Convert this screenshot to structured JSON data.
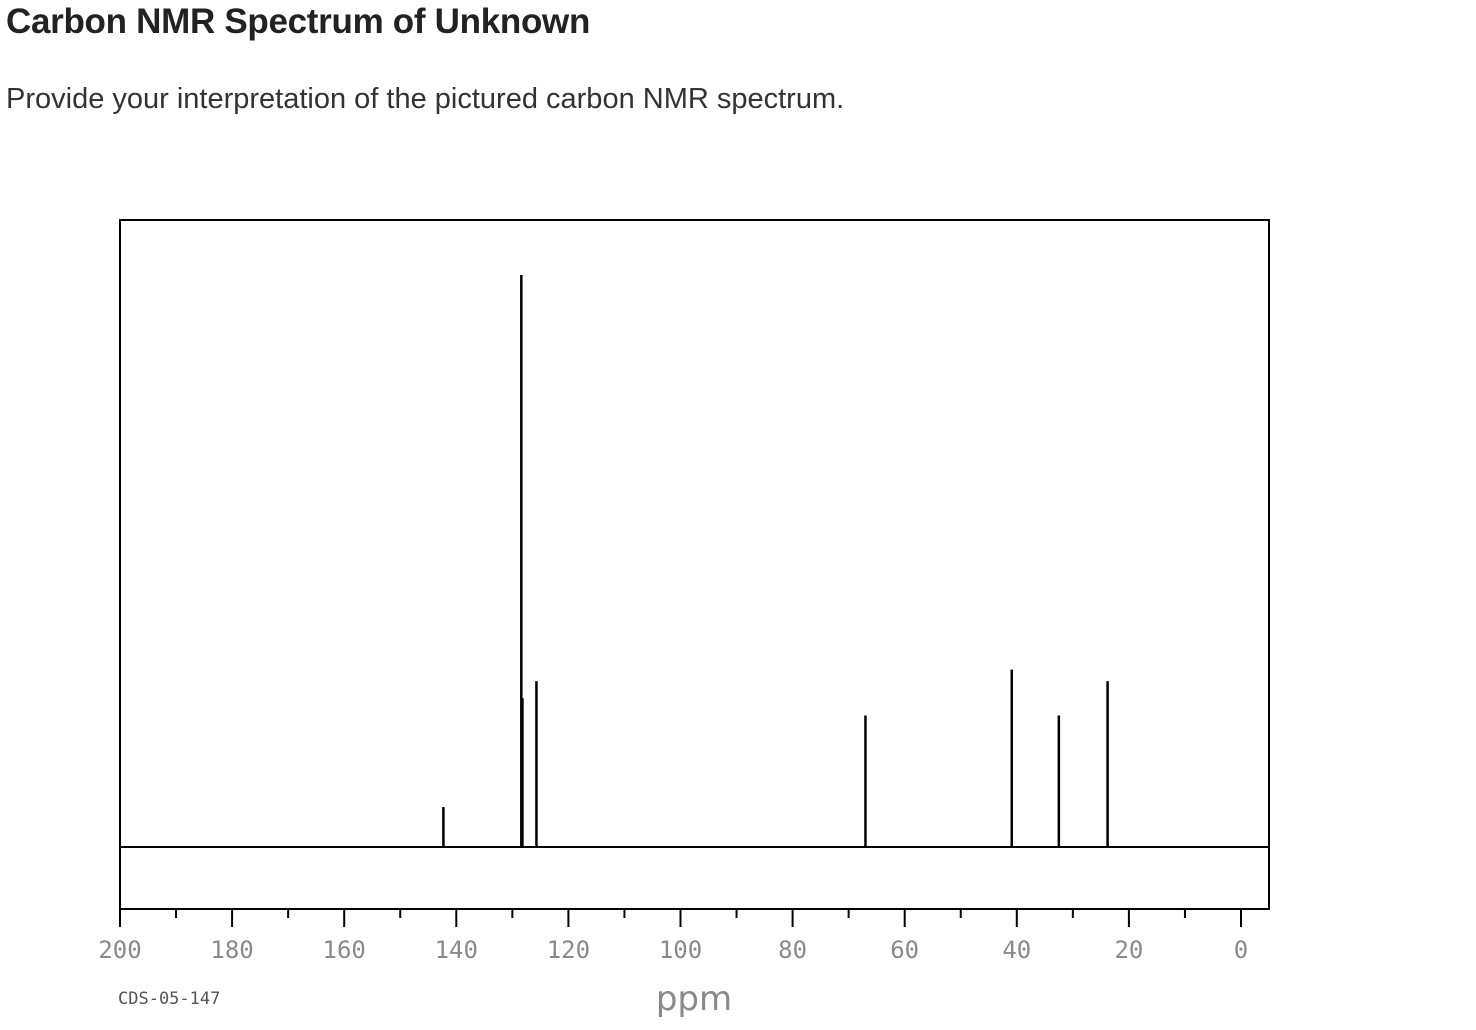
{
  "header": {
    "title": "Carbon NMR Spectrum of Unknown",
    "prompt": "Provide your interpretation of the pictured carbon NMR spectrum."
  },
  "chart_data": {
    "type": "line",
    "title": "",
    "xlabel": "ppm",
    "ylabel": "",
    "xlim": [
      200,
      0
    ],
    "x_reversed": true,
    "ylim": [
      -0.2,
      1.05
    ],
    "grid": false,
    "sample_code": "CDS-05-147",
    "x_ticks": [
      200,
      180,
      160,
      140,
      120,
      100,
      80,
      60,
      40,
      20,
      0
    ],
    "minor_ticks": [
      190,
      170,
      150,
      130,
      110,
      90,
      70,
      50,
      30,
      10
    ],
    "series": [
      {
        "peaks": [
          {
            "ppm": 142.3,
            "intensity": 0.07
          },
          {
            "ppm": 128.4,
            "intensity": 1.0
          },
          {
            "ppm": 128.2,
            "intensity": 0.26
          },
          {
            "ppm": 125.7,
            "intensity": 0.29
          },
          {
            "ppm": 67.0,
            "intensity": 0.23
          },
          {
            "ppm": 40.9,
            "intensity": 0.31
          },
          {
            "ppm": 32.5,
            "intensity": 0.23
          },
          {
            "ppm": 23.8,
            "intensity": 0.29
          }
        ]
      }
    ],
    "colors": {
      "trace": "#000000",
      "frame": "#000000",
      "tick_text": "#8a8a8a"
    }
  }
}
